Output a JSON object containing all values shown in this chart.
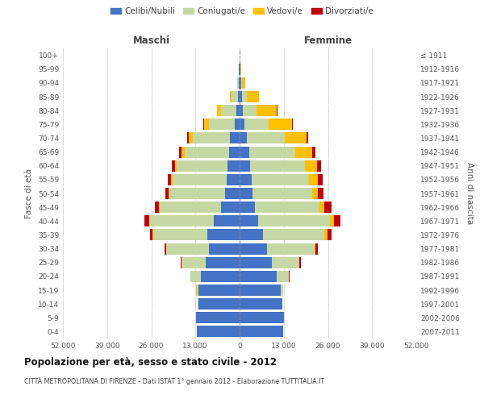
{
  "age_groups_bottom_to_top": [
    "0-4",
    "5-9",
    "10-14",
    "15-19",
    "20-24",
    "25-29",
    "30-34",
    "35-39",
    "40-44",
    "45-49",
    "50-54",
    "55-59",
    "60-64",
    "65-69",
    "70-74",
    "75-79",
    "80-84",
    "85-89",
    "90-94",
    "95-99",
    "100+"
  ],
  "birth_years_bottom_to_top": [
    "2007-2011",
    "2002-2006",
    "1997-2001",
    "1992-1996",
    "1987-1991",
    "1982-1986",
    "1977-1981",
    "1972-1976",
    "1967-1971",
    "1962-1966",
    "1957-1961",
    "1952-1956",
    "1947-1951",
    "1942-1946",
    "1937-1941",
    "1932-1936",
    "1927-1931",
    "1922-1926",
    "1917-1921",
    "1912-1916",
    "≤ 1911"
  ],
  "maschi_celibi": [
    12500,
    12800,
    12200,
    12000,
    11500,
    10000,
    9000,
    9500,
    7500,
    5500,
    4200,
    3800,
    3500,
    3200,
    2800,
    1500,
    900,
    500,
    250,
    120,
    50
  ],
  "maschi_coniugati": [
    5,
    10,
    100,
    700,
    3000,
    7000,
    12500,
    16000,
    19000,
    18000,
    16500,
    16000,
    15000,
    13000,
    11000,
    7500,
    4500,
    1800,
    350,
    80,
    20
  ],
  "maschi_vedovi": [
    0,
    1,
    2,
    5,
    10,
    20,
    50,
    100,
    150,
    200,
    300,
    400,
    600,
    800,
    1200,
    1500,
    1200,
    500,
    120,
    30,
    5
  ],
  "maschi_divorziati": [
    1,
    2,
    5,
    20,
    80,
    200,
    500,
    800,
    1300,
    1200,
    800,
    900,
    900,
    700,
    400,
    100,
    50,
    20,
    10,
    5,
    2
  ],
  "femmine_nubili": [
    12800,
    13000,
    12500,
    12000,
    11000,
    9500,
    8000,
    7000,
    5500,
    4500,
    3800,
    3500,
    3200,
    2800,
    2200,
    1500,
    1000,
    700,
    400,
    200,
    60
  ],
  "femmine_coniugate": [
    5,
    15,
    120,
    800,
    3500,
    8000,
    14000,
    18000,
    21000,
    19000,
    17500,
    17000,
    16000,
    13500,
    11000,
    7000,
    4000,
    1500,
    300,
    60,
    10
  ],
  "femmine_vedove": [
    1,
    2,
    5,
    20,
    60,
    150,
    400,
    800,
    1200,
    1500,
    1800,
    2500,
    3500,
    5000,
    6500,
    7000,
    6000,
    3500,
    900,
    200,
    30
  ],
  "femmine_divorziate": [
    1,
    2,
    8,
    30,
    100,
    300,
    700,
    1200,
    2000,
    2000,
    1500,
    1400,
    1300,
    1000,
    600,
    200,
    100,
    50,
    20,
    8,
    2
  ],
  "colors": {
    "celibi": "#4472c4",
    "coniugati": "#c5d8a4",
    "vedovi": "#ffc000",
    "divorziati": "#c0000c"
  },
  "title": "Popolazione per età, sesso e stato civile - 2012",
  "subtitle": "CITTÀ METROPOLITANA DI FIRENZE - Dati ISTAT 1° gennaio 2012 - Elaborazione TUTTITALIA.IT",
  "ylabel_left": "Fasce di età",
  "ylabel_right": "Anni di nascita",
  "legend_labels": [
    "Celibi/Nubili",
    "Coniugati/e",
    "Vedovi/e",
    "Divorziati/e"
  ],
  "maschi_label": "Maschi",
  "femmine_label": "Femmine"
}
